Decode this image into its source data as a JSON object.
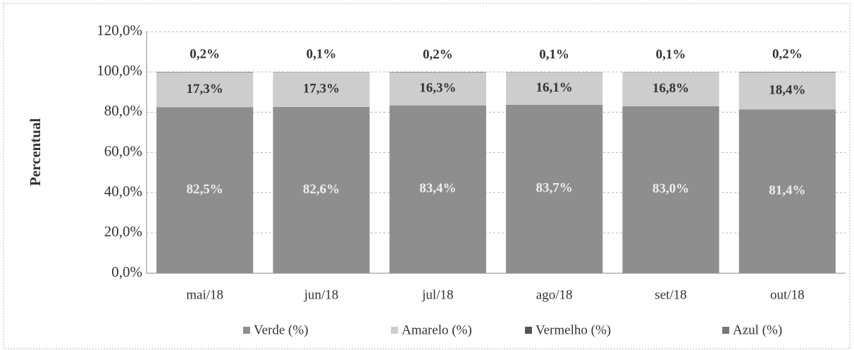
{
  "chart_data": {
    "type": "stacked_bar",
    "ylabel": "Percentual",
    "categories": [
      "mai/18",
      "jun/18",
      "jul/18",
      "ago/18",
      "set/18",
      "out/18"
    ],
    "series": [
      {
        "name": "Verde (%)",
        "color": "#8e8e8e",
        "values": [
          82.5,
          82.6,
          83.4,
          83.7,
          83.0,
          81.4
        ],
        "value_labels": [
          "82,5%",
          "82,6%",
          "83,4%",
          "83,7%",
          "83,0%",
          "81,4%"
        ]
      },
      {
        "name": "Amarelo (%)",
        "color": "#cdcdcd",
        "values": [
          17.3,
          17.3,
          16.3,
          16.1,
          16.8,
          18.4
        ],
        "value_labels": [
          "17,3%",
          "17,3%",
          "16,3%",
          "16,1%",
          "16,8%",
          "18,4%"
        ]
      },
      {
        "name": "Vermelho (%)",
        "color": "#555555",
        "values": [
          0.2,
          0.1,
          0.2,
          0.1,
          0.1,
          0.2
        ],
        "value_labels": [
          "0,2%",
          "0,1%",
          "0,2%",
          "0,1%",
          "0,1%",
          "0,2%"
        ]
      },
      {
        "name": "Azul (%)",
        "color": "#777777",
        "values": [
          0,
          0,
          0,
          0,
          0,
          0
        ]
      }
    ],
    "ylim": [
      0,
      120
    ],
    "yticks": [
      {
        "value": 0,
        "label": "0,0%"
      },
      {
        "value": 20,
        "label": "20,0%"
      },
      {
        "value": 40,
        "label": "40,0%"
      },
      {
        "value": 60,
        "label": "60,0%"
      },
      {
        "value": 80,
        "label": "80,0%"
      },
      {
        "value": 100,
        "label": "100,0%"
      },
      {
        "value": 120,
        "label": "120,0%"
      }
    ],
    "grid": true
  }
}
